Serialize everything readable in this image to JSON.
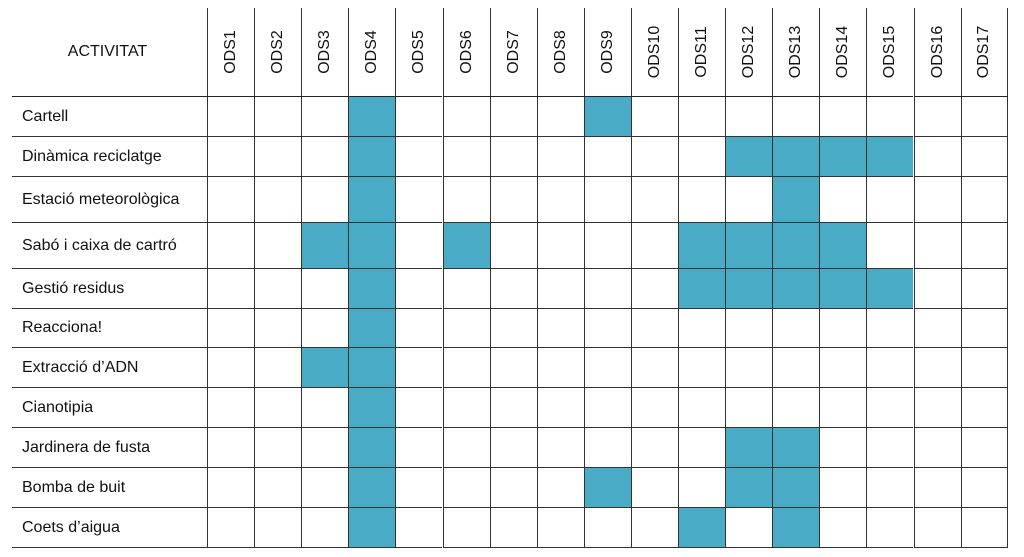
{
  "table": {
    "header": {
      "activity": "ACTIVITAT",
      "columns": [
        "ODS1",
        "ODS2",
        "ODS3",
        "ODS4",
        "ODS5",
        "ODS6",
        "ODS7",
        "ODS8",
        "ODS9",
        "ODS10",
        "ODS11",
        "ODS12",
        "ODS13",
        "ODS14",
        "ODS15",
        "ODS16",
        "ODS17"
      ]
    },
    "fill_color": "#4aabc6",
    "rows": [
      {
        "activity": "Cartell",
        "cells": [
          false,
          false,
          false,
          true,
          false,
          false,
          false,
          false,
          true,
          false,
          false,
          false,
          false,
          false,
          false,
          false,
          false
        ]
      },
      {
        "activity": "Dinàmica reciclatge",
        "cells": [
          false,
          false,
          false,
          true,
          false,
          false,
          false,
          false,
          false,
          false,
          false,
          true,
          true,
          true,
          true,
          false,
          false
        ]
      },
      {
        "activity": "Estació meteorològica",
        "cells": [
          false,
          false,
          false,
          true,
          false,
          false,
          false,
          false,
          false,
          false,
          false,
          false,
          true,
          false,
          false,
          false,
          false
        ]
      },
      {
        "activity": "Sabó i caixa de cartró",
        "cells": [
          false,
          false,
          true,
          true,
          false,
          true,
          false,
          false,
          false,
          false,
          true,
          true,
          true,
          true,
          false,
          false,
          false
        ]
      },
      {
        "activity": "Gestió residus",
        "cells": [
          false,
          false,
          false,
          true,
          false,
          false,
          false,
          false,
          false,
          false,
          true,
          true,
          true,
          true,
          true,
          false,
          false
        ]
      },
      {
        "activity": "Reacciona!",
        "cells": [
          false,
          false,
          false,
          true,
          false,
          false,
          false,
          false,
          false,
          false,
          false,
          false,
          false,
          false,
          false,
          false,
          false
        ]
      },
      {
        "activity": "Extracció d’ADN",
        "cells": [
          false,
          false,
          true,
          true,
          false,
          false,
          false,
          false,
          false,
          false,
          false,
          false,
          false,
          false,
          false,
          false,
          false
        ]
      },
      {
        "activity": "Cianotipia",
        "cells": [
          false,
          false,
          false,
          true,
          false,
          false,
          false,
          false,
          false,
          false,
          false,
          false,
          false,
          false,
          false,
          false,
          false
        ]
      },
      {
        "activity": "Jardinera de fusta",
        "cells": [
          false,
          false,
          false,
          true,
          false,
          false,
          false,
          false,
          false,
          false,
          false,
          true,
          true,
          false,
          false,
          false,
          false
        ]
      },
      {
        "activity": "Bomba de buit",
        "cells": [
          false,
          false,
          false,
          true,
          false,
          false,
          false,
          false,
          true,
          false,
          false,
          true,
          true,
          false,
          false,
          false,
          false
        ]
      },
      {
        "activity": "Coets d’aigua",
        "cells": [
          false,
          false,
          false,
          true,
          false,
          false,
          false,
          false,
          false,
          false,
          true,
          false,
          true,
          false,
          false,
          false,
          false
        ]
      }
    ]
  }
}
